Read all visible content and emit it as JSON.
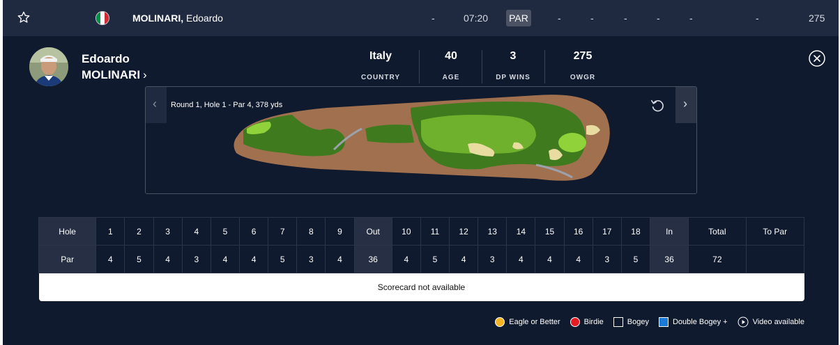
{
  "colors": {
    "panel": "#101a2e",
    "top_row": "#1f2a40",
    "eagle": "#f5b324",
    "birdie": "#e51c23",
    "bogey_border": "#ffffff",
    "double_bogey": "#1c7bd9"
  },
  "top_row": {
    "favorite_icon": "star-icon",
    "flag": "italy-flag",
    "last_name": "MOLINARI,",
    "first_name": "Edoardo",
    "pos": "-",
    "tee_time": "07:20",
    "score_label": "PAR",
    "thru": "-",
    "r1": "-",
    "r2": "-",
    "r3": "-",
    "r4": "-",
    "total": "-",
    "owgr": "275"
  },
  "player": {
    "first_name": "Edoardo",
    "last_name": "MOLINARI",
    "profile_chevron": "›",
    "stats": [
      {
        "value": "Italy",
        "label": "COUNTRY"
      },
      {
        "value": "40",
        "label": "AGE"
      },
      {
        "value": "3",
        "label": "DP WINS"
      },
      {
        "value": "275",
        "label": "OWGR"
      }
    ]
  },
  "hole_map": {
    "caption": "Round 1, Hole 1 - Par 4, 378 yds",
    "prev_label": "‹",
    "next_label": "›",
    "reset_icon": "reset-icon"
  },
  "scorecard": {
    "hole_header": "Hole",
    "par_header": "Par",
    "holes_front": [
      "1",
      "2",
      "3",
      "4",
      "5",
      "6",
      "7",
      "8",
      "9"
    ],
    "out_label": "Out",
    "holes_back": [
      "10",
      "11",
      "12",
      "13",
      "14",
      "15",
      "16",
      "17",
      "18"
    ],
    "in_label": "In",
    "total_label": "Total",
    "to_par_label": "To Par",
    "par_front": [
      "4",
      "5",
      "4",
      "3",
      "4",
      "4",
      "5",
      "3",
      "4"
    ],
    "par_out": "36",
    "par_back": [
      "4",
      "5",
      "4",
      "3",
      "4",
      "4",
      "4",
      "3",
      "5"
    ],
    "par_in": "36",
    "par_total": "72",
    "par_to_par": "",
    "message": "Scorecard not available"
  },
  "legend": {
    "eagle": "Eagle or Better",
    "birdie": "Birdie",
    "bogey": "Bogey",
    "double_bogey": "Double Bogey +",
    "video": "Video available"
  }
}
